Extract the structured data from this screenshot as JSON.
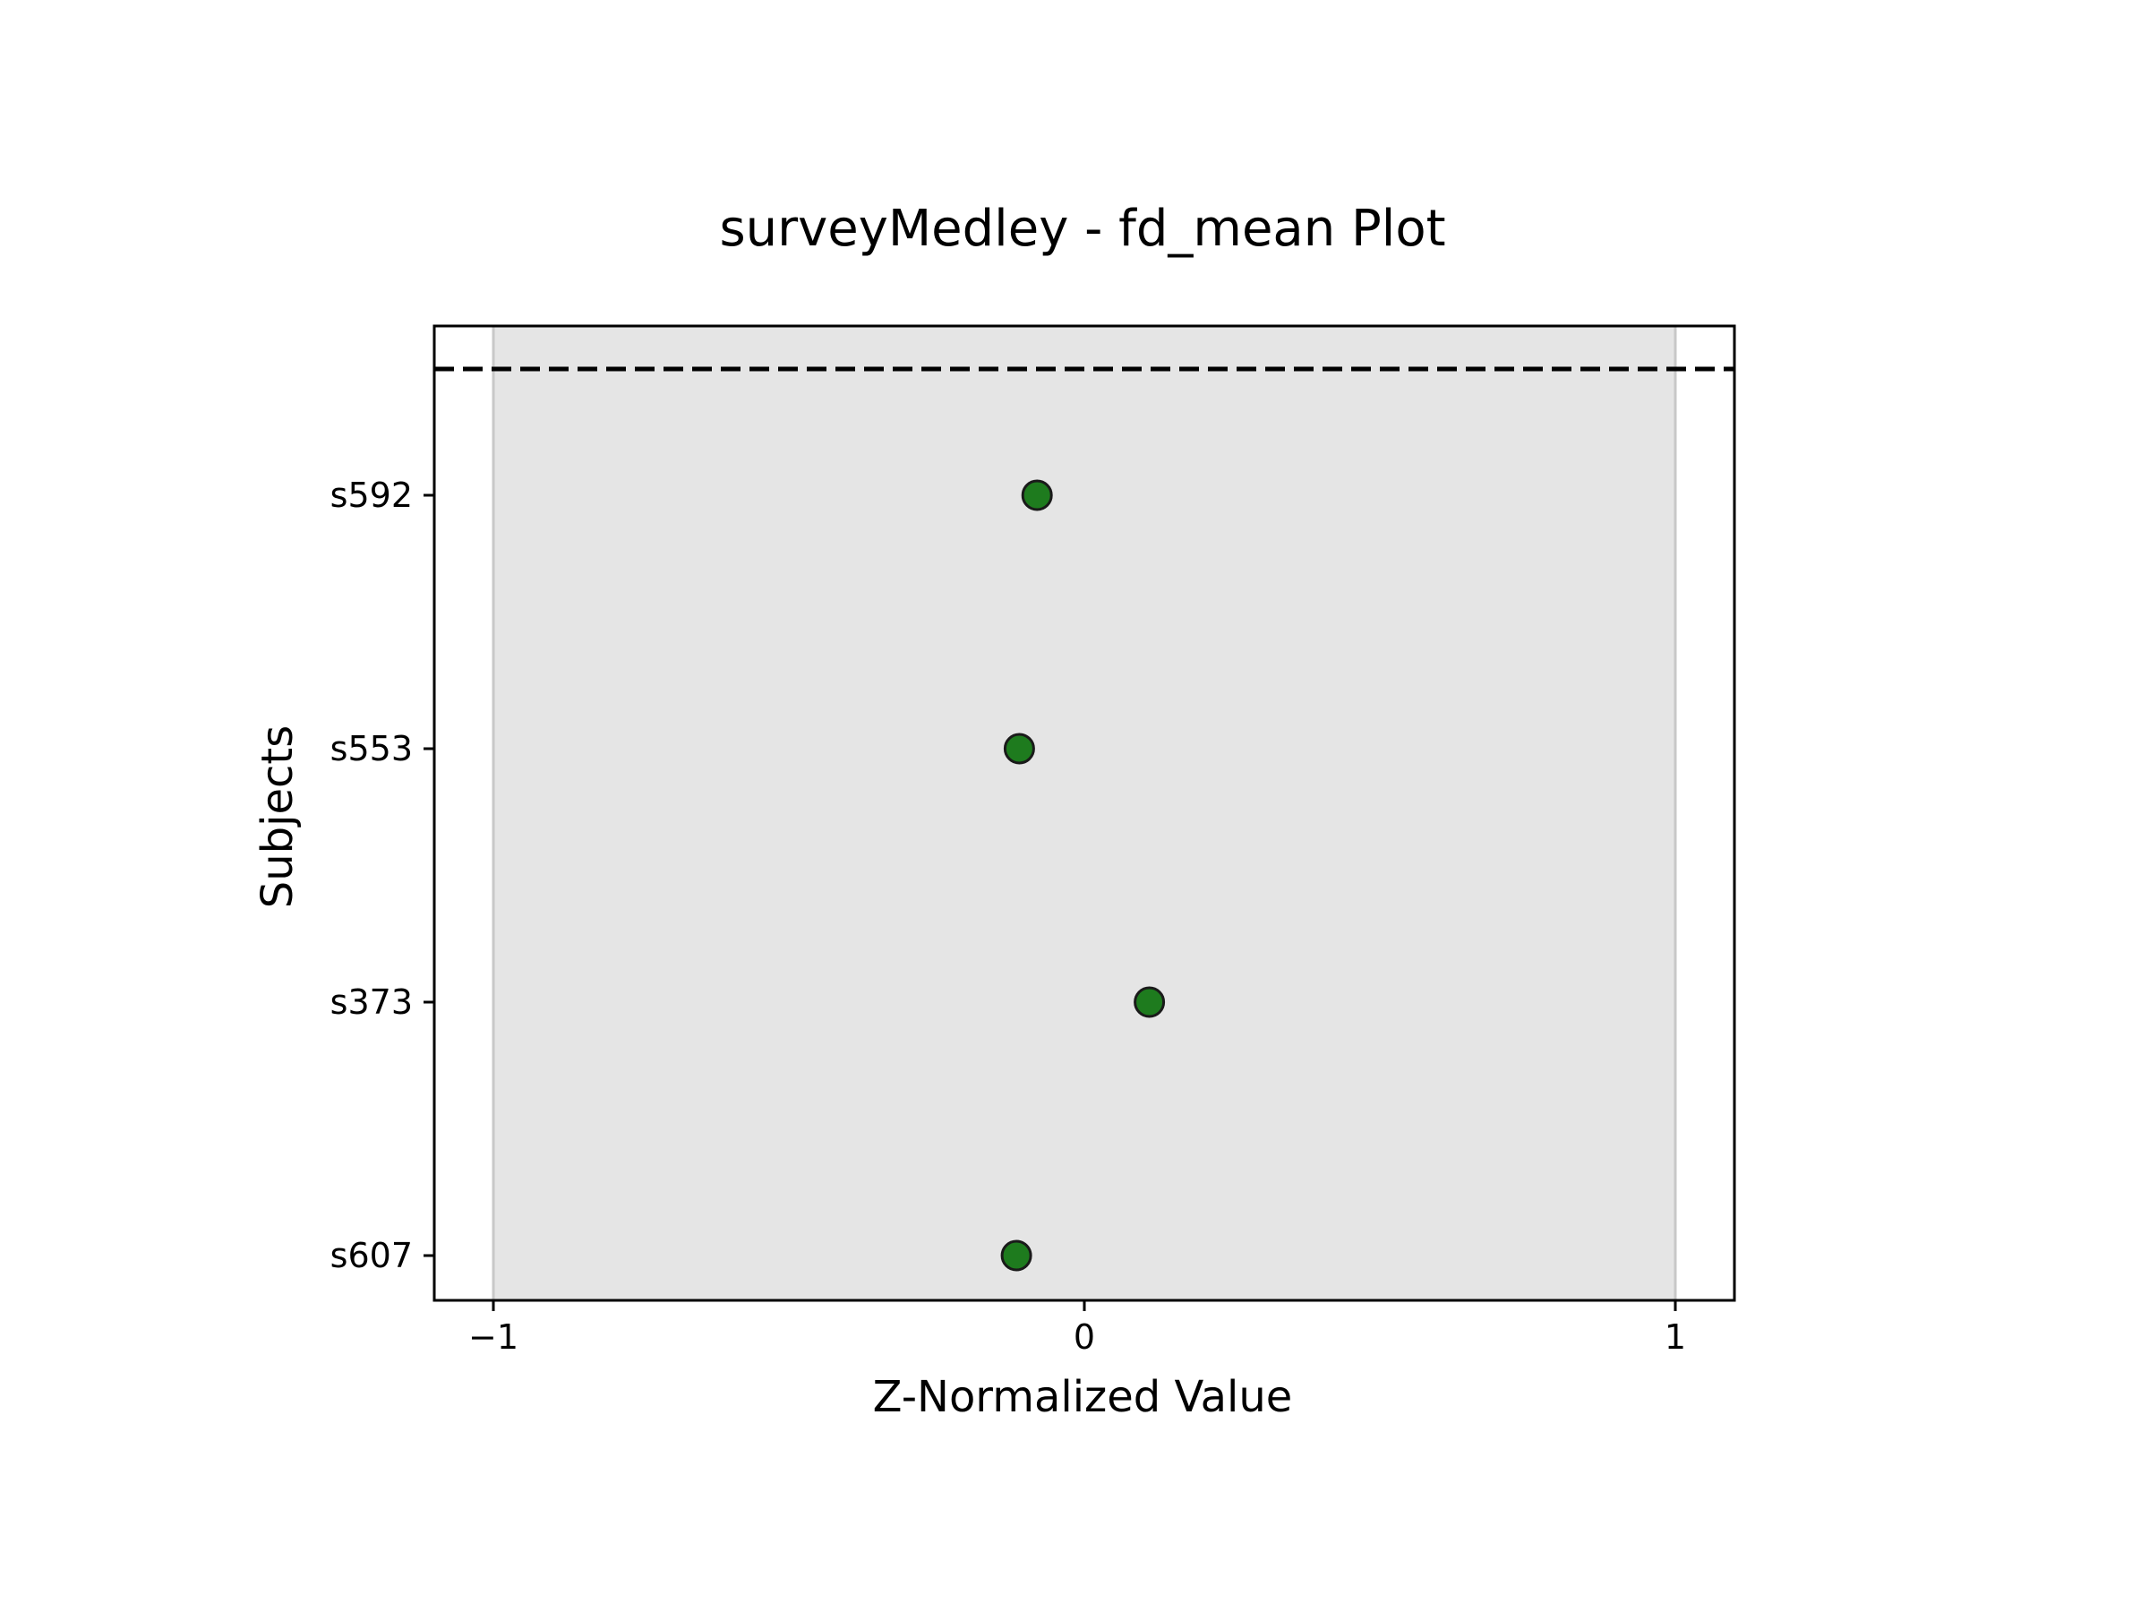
{
  "chart_data": {
    "type": "scatter",
    "title": "surveyMedley - fd_mean Plot",
    "xlabel": "Z-Normalized Value",
    "ylabel": "Subjects",
    "xlim": [
      -1.1,
      1.1
    ],
    "xticks": [
      -1,
      0,
      1
    ],
    "xtick_labels": [
      "−1",
      "0",
      "1"
    ],
    "categories": [
      "s592",
      "s553",
      "s373",
      "s607"
    ],
    "values": [
      -0.08,
      -0.11,
      0.11,
      -0.115
    ],
    "shaded_band": [
      -1,
      1
    ],
    "reference_line": "dashed horizontal line above s592",
    "grid": false,
    "colors": {
      "marker_fill": "#1e7b1e",
      "marker_edge": "#1a1a1a",
      "band_fill": "#e5e5e5",
      "band_edge": "#c8c8c8",
      "axes": "#000000"
    }
  }
}
